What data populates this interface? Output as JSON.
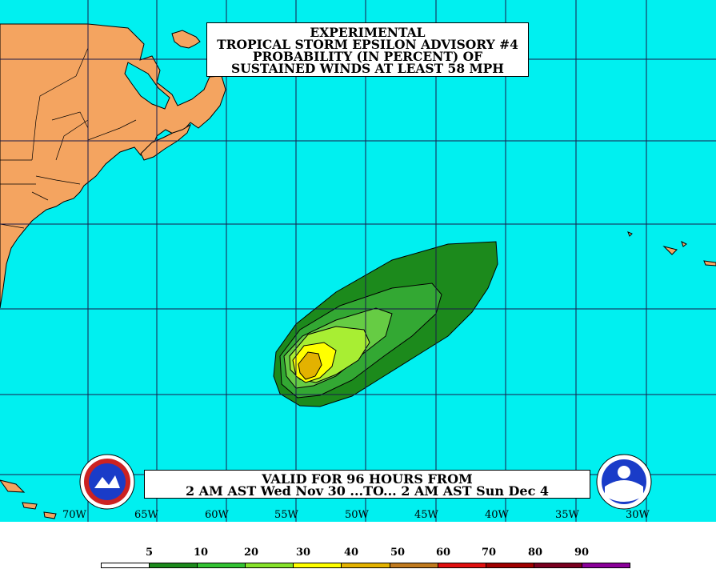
{
  "title": {
    "line1": "EXPERIMENTAL",
    "line2": "TROPICAL STORM EPSILON ADVISORY #4",
    "line3": "PROBABILITY (IN PERCENT) OF",
    "line4": "SUSTAINED WINDS AT LEAST 58 MPH"
  },
  "valid": {
    "line1": "VALID FOR 96 HOURS FROM",
    "line2": "2 AM AST Wed Nov 30 ...TO... 2 AM AST Sun Dec 4"
  },
  "longitude_labels": [
    "70W",
    "65W",
    "60W",
    "55W",
    "50W",
    "45W",
    "40W",
    "35W",
    "30W"
  ],
  "legend": {
    "labels": [
      "5",
      "10",
      "20",
      "30",
      "40",
      "50",
      "60",
      "70",
      "80",
      "90"
    ],
    "colors": [
      "#ffffff",
      "#1c8a1c",
      "#33c233",
      "#86e22a",
      "#ffff00",
      "#e3b200",
      "#c07a1e",
      "#e01010",
      "#a00000",
      "#7a0020",
      "#8a0099"
    ]
  },
  "colors": {
    "ocean": "#00f0f0",
    "land": "#f4a460",
    "grid": "#1a1a4a",
    "prob_5": "#1c8a1c",
    "prob_10": "#33a833",
    "prob_20": "#66cc44",
    "prob_30": "#a8ee33",
    "prob_40": "#ffff00",
    "prob_50": "#e3b200"
  },
  "logos": {
    "left_icon": "nws-logo-icon",
    "right_icon": "noaa-logo-icon"
  }
}
